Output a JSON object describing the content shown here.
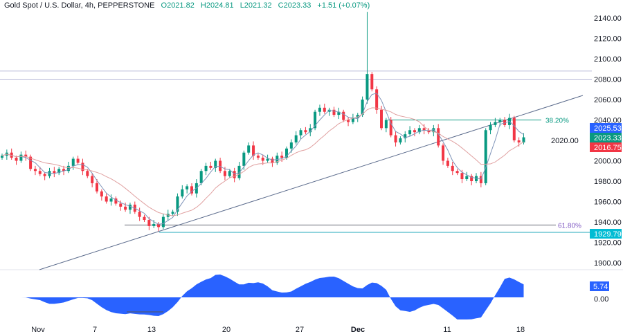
{
  "header": {
    "symbol": "Gold Spot / U.S. Dollar, 4h, PEPPERSTONE",
    "open": "O2021.82",
    "high": "H2024.81",
    "low": "L2021.32",
    "close": "C2023.33",
    "change": "+1.51 (+0.07%)"
  },
  "colors": {
    "up": "#089981",
    "down": "#f23645",
    "ma_fast": "#7e93b8",
    "ma_slow": "#e0a0a0",
    "osc": "#2962ff",
    "fib": "#089981",
    "fib2": "#7e57c2",
    "support": "#22aabb"
  },
  "chart_data": {
    "type": "candlestick",
    "title": "Gold Spot / U.S. Dollar, 4h, PEPPERSTONE",
    "ylim": [
      1890,
      2150
    ],
    "y_ticks": [
      "2140.00",
      "2120.00",
      "2100.00",
      "2080.00",
      "2060.00",
      "2040.00",
      "2020.00",
      "2000.00",
      "1980.00",
      "1960.00",
      "1940.00",
      "1920.00",
      "1900.00"
    ],
    "x_ticks": [
      "Nov",
      "7",
      "13",
      "20",
      "27",
      "Dec",
      "11",
      "18"
    ],
    "closes": [
      2005,
      2008,
      2003,
      2000,
      2006,
      2004,
      1992,
      1990,
      1987,
      1985,
      1990,
      1988,
      1992,
      1990,
      1995,
      2002,
      1998,
      1990,
      1985,
      1978,
      1970,
      1965,
      1960,
      1963,
      1958,
      1955,
      1952,
      1957,
      1950,
      1945,
      1942,
      1936,
      1938,
      1935,
      1945,
      1948,
      1950,
      1965,
      1972,
      1975,
      1968,
      1978,
      1990,
      1995,
      1993,
      2000,
      1990,
      1985,
      1990,
      1983,
      1995,
      2008,
      2015,
      2005,
      2003,
      2000,
      2002,
      1998,
      2005,
      2003,
      2012,
      2018,
      2025,
      2030,
      2028,
      2032,
      2048,
      2052,
      2048,
      2050,
      2045,
      2048,
      2040,
      2038,
      2042,
      2045,
      2060,
      2085,
      2070,
      2050,
      2032,
      2040,
      2025,
      2018,
      2022,
      2026,
      2030,
      2028,
      2032,
      2030,
      2028,
      2032,
      2015,
      2000,
      1995,
      1990,
      1988,
      1982,
      1985,
      1980,
      1985,
      1978,
      2030,
      2035,
      2038,
      2040,
      2035,
      2042,
      2020,
      2018,
      2023
    ],
    "spike": {
      "index": 77,
      "high": 2146
    },
    "levels": [
      {
        "price": 2088,
        "label": ""
      },
      {
        "price": 2080,
        "label": ""
      },
      {
        "price": 2040,
        "label": "38.20%"
      },
      {
        "price": 1937,
        "label": "61.80%"
      },
      {
        "price": 1929.79,
        "label": ""
      }
    ],
    "trendline": [
      [
        0,
        1890
      ],
      [
        110,
        2063
      ]
    ],
    "price_tags": {
      "ma_fast": "2025.53",
      "last": "2023.33",
      "ma_slow": "2016.75",
      "support": "1929.79"
    },
    "oscillator": {
      "last": "5.74",
      "zero": "0.00"
    }
  }
}
